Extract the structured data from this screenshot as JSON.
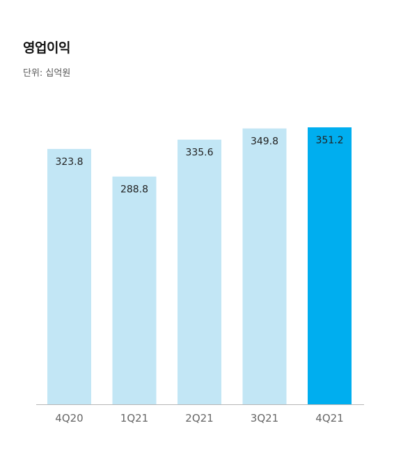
{
  "title": "영업이익",
  "unit_label": "단위: 십억원",
  "colors": {
    "bar": "#c2e6f5",
    "bar_highlight": "#00aeef",
    "axis": "#b5b5b5"
  },
  "chart_data": {
    "type": "bar",
    "categories": [
      "4Q20",
      "1Q21",
      "2Q21",
      "3Q21",
      "4Q21"
    ],
    "values": [
      323.8,
      288.8,
      335.6,
      349.8,
      351.2
    ],
    "value_labels": [
      "323.8",
      "288.8",
      "335.6",
      "349.8",
      "351.2"
    ],
    "highlight_index": 4,
    "title": "영업이익",
    "subtitle": "단위: 십억원",
    "xlabel": "",
    "ylabel": "",
    "ylim": [
      0,
      351.2
    ],
    "grid": false,
    "legend": "none"
  }
}
